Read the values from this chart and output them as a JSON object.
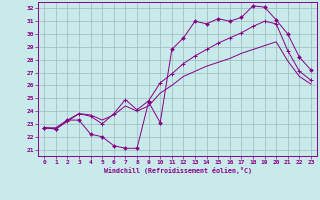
{
  "xlabel": "Windchill (Refroidissement éolien,°C)",
  "xlim": [
    -0.5,
    23.5
  ],
  "ylim": [
    20.5,
    32.5
  ],
  "xticks": [
    0,
    1,
    2,
    3,
    4,
    5,
    6,
    7,
    8,
    9,
    10,
    11,
    12,
    13,
    14,
    15,
    16,
    17,
    18,
    19,
    20,
    21,
    22,
    23
  ],
  "yticks": [
    21,
    22,
    23,
    24,
    25,
    26,
    27,
    28,
    29,
    30,
    31,
    32
  ],
  "bg_color": "#c8eaea",
  "line_color": "#880088",
  "grid_color": "#99bbbb",
  "line1_x": [
    0,
    1,
    2,
    3,
    4,
    5,
    6,
    7,
    8,
    9,
    10,
    11,
    12,
    13,
    14,
    15,
    16,
    17,
    18,
    19,
    20,
    21,
    22,
    23
  ],
  "line1_y": [
    22.7,
    22.6,
    23.3,
    23.3,
    22.2,
    22.0,
    21.3,
    21.1,
    21.1,
    24.7,
    23.1,
    28.8,
    29.7,
    31.0,
    30.8,
    31.2,
    31.0,
    31.3,
    32.2,
    32.1,
    31.1,
    30.0,
    28.2,
    27.2
  ],
  "line2_x": [
    0,
    1,
    2,
    3,
    4,
    5,
    6,
    7,
    8,
    9,
    10,
    11,
    12,
    13,
    14,
    15,
    16,
    17,
    18,
    19,
    20,
    21,
    22,
    23
  ],
  "line2_y": [
    22.7,
    22.6,
    23.2,
    23.8,
    23.6,
    23.0,
    23.8,
    24.9,
    24.1,
    24.8,
    26.2,
    26.9,
    27.7,
    28.3,
    28.8,
    29.3,
    29.7,
    30.1,
    30.6,
    31.0,
    30.8,
    28.7,
    27.1,
    26.4
  ],
  "line3_x": [
    0,
    1,
    2,
    3,
    4,
    5,
    6,
    7,
    8,
    9,
    10,
    11,
    12,
    13,
    14,
    15,
    16,
    17,
    18,
    19,
    20,
    21,
    22,
    23
  ],
  "line3_y": [
    22.7,
    22.7,
    23.3,
    23.8,
    23.7,
    23.3,
    23.7,
    24.4,
    24.0,
    24.4,
    25.4,
    26.0,
    26.7,
    27.1,
    27.5,
    27.8,
    28.1,
    28.5,
    28.8,
    29.1,
    29.4,
    27.9,
    26.7,
    26.1
  ]
}
